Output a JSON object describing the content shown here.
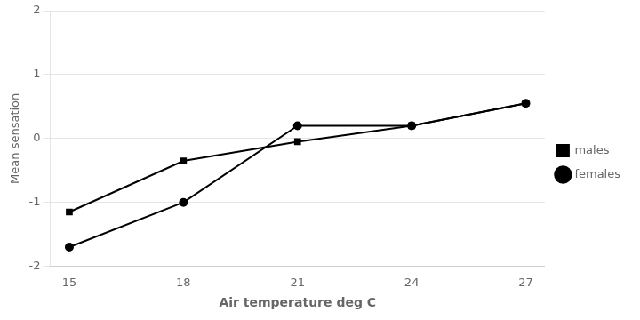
{
  "chart_data": {
    "type": "line",
    "x": [
      15,
      18,
      21,
      24,
      27
    ],
    "series": [
      {
        "name": "males",
        "color": "#000000",
        "marker": "square",
        "values": [
          -1.15,
          -0.35,
          -0.05,
          0.2,
          0.55
        ]
      },
      {
        "name": "females",
        "color": "#000000",
        "marker": "circle",
        "values": [
          -1.7,
          -1.0,
          0.2,
          0.2,
          0.55
        ]
      }
    ],
    "xlabel": "Air temperature deg C",
    "ylabel": "Mean sensation",
    "xlim": [
      14.5,
      27.5
    ],
    "xticks": [
      15,
      18,
      21,
      24,
      27
    ],
    "ylim": [
      -2,
      2
    ],
    "yticks": [
      -2,
      -1,
      0,
      1,
      2
    ],
    "grid": "y",
    "legend": "right"
  }
}
